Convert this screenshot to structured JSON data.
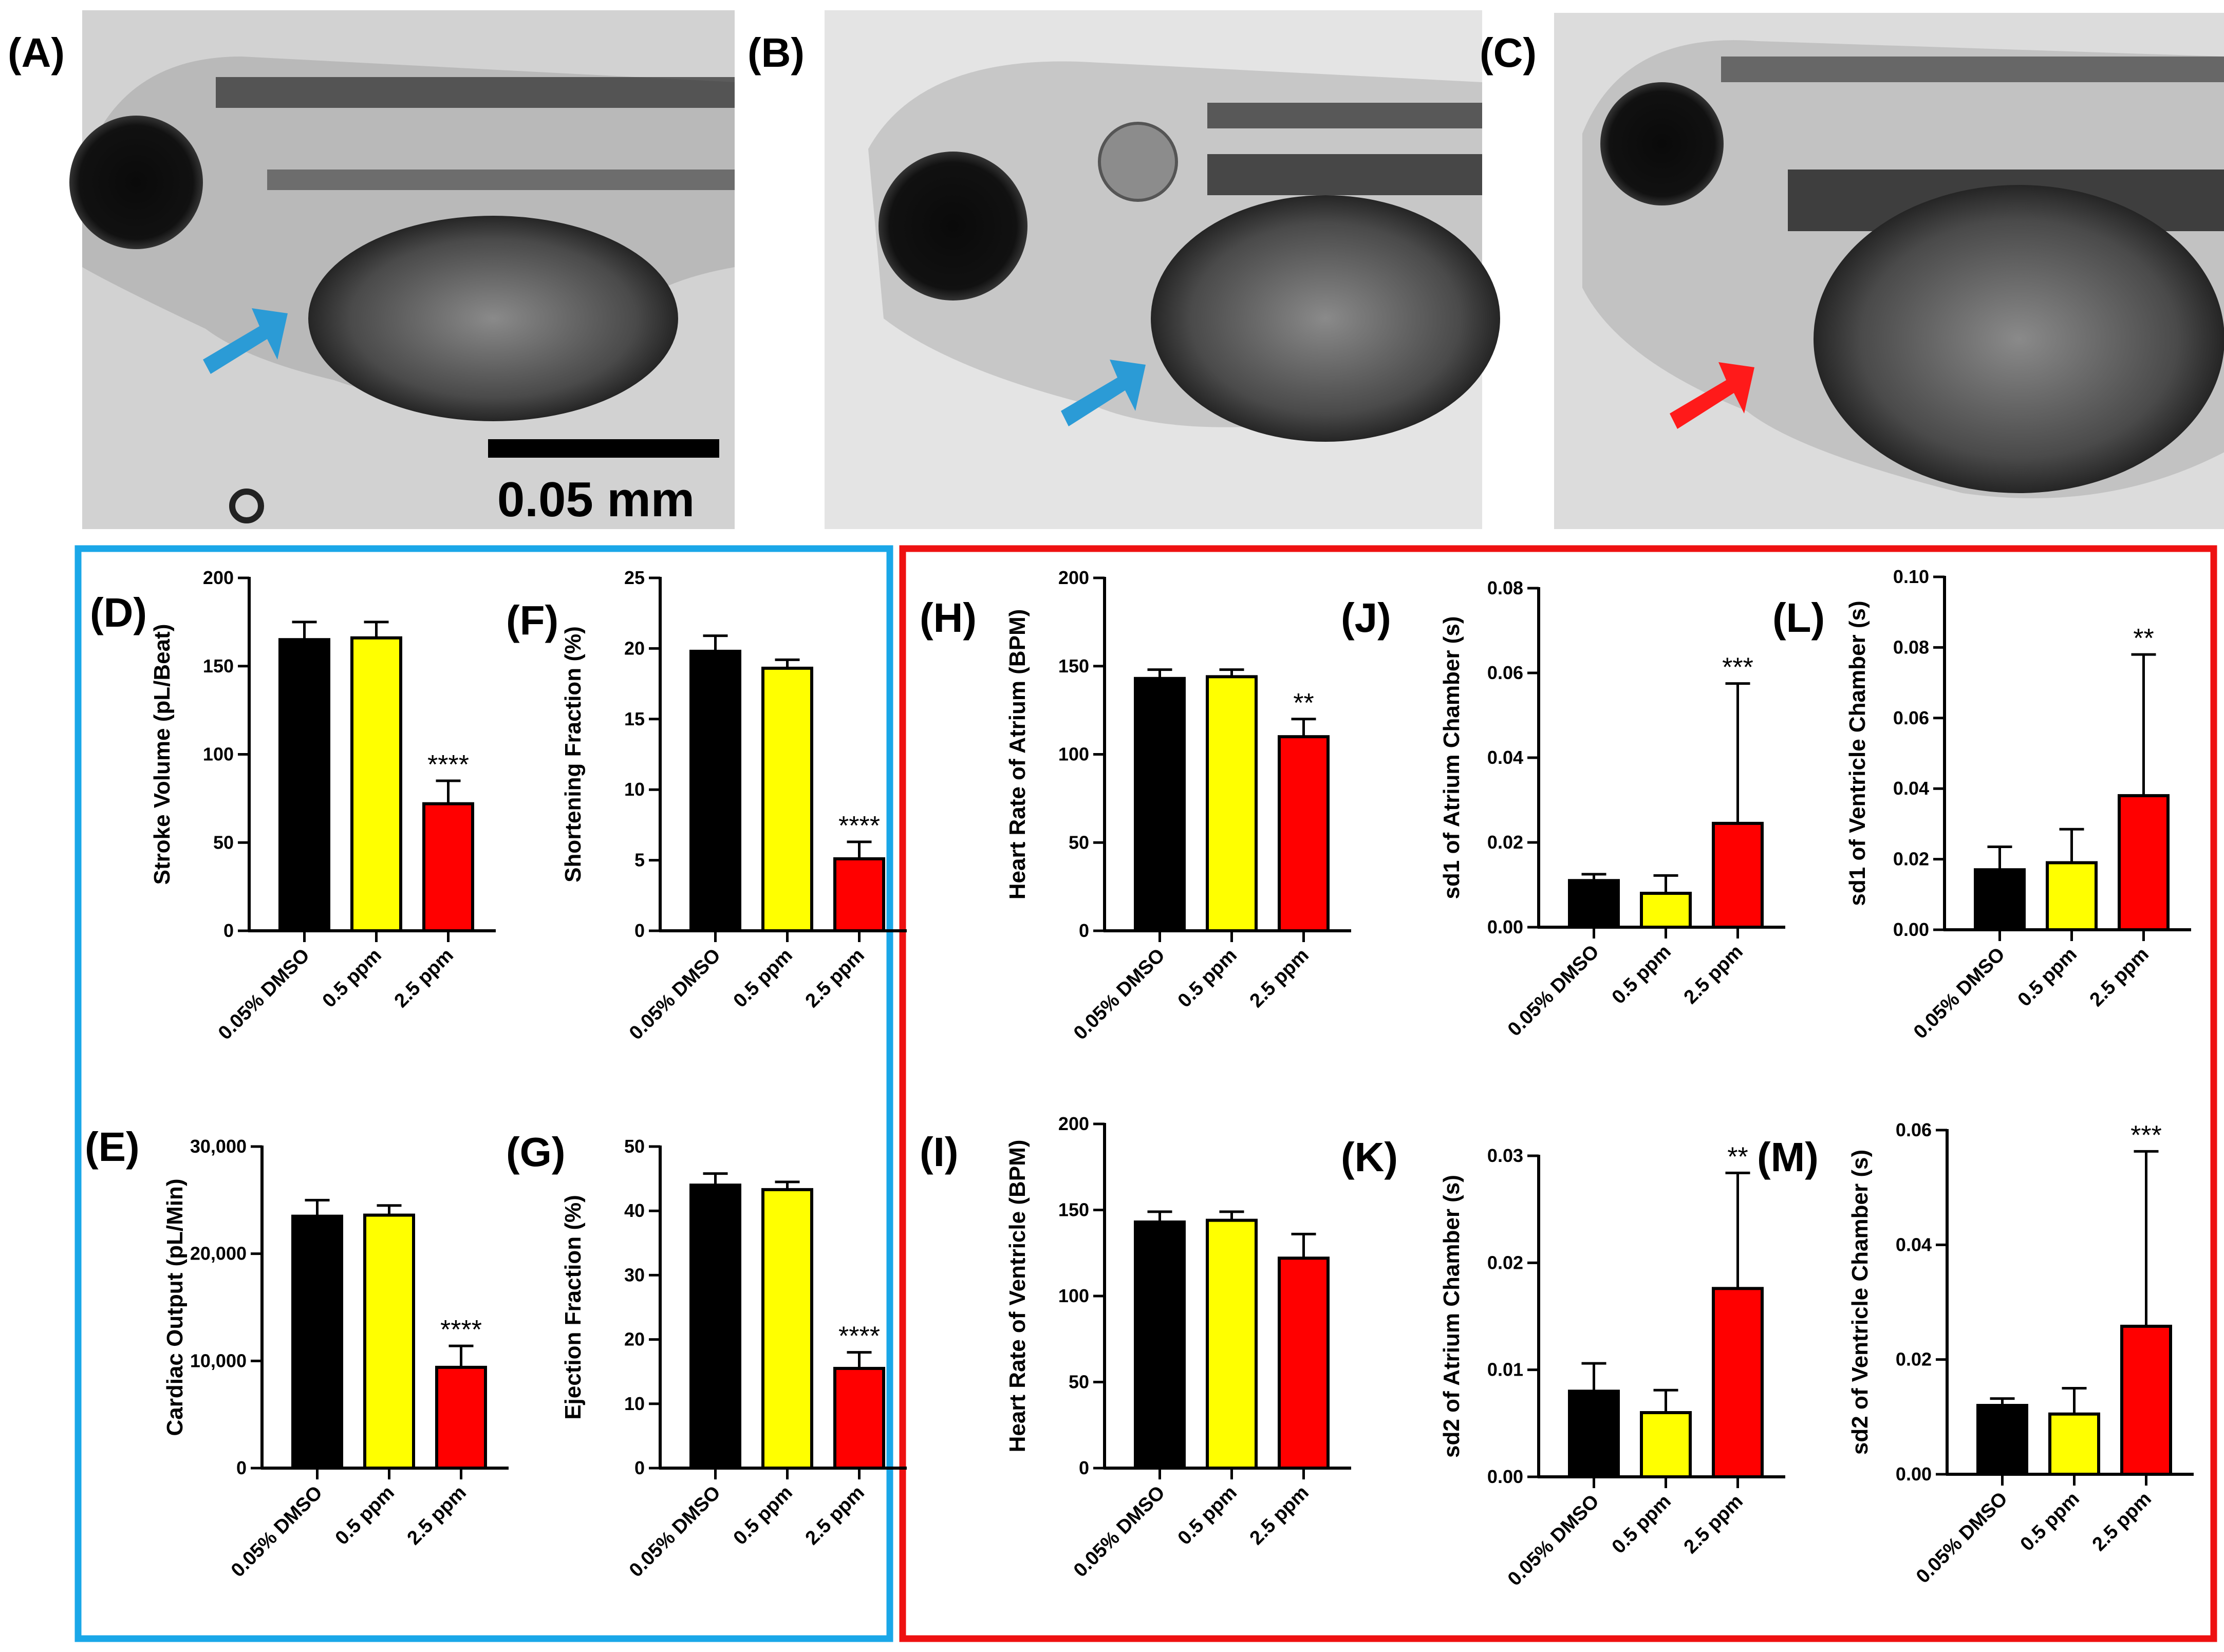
{
  "photos": [
    {
      "panel": "(A)",
      "arrow_color": "#2b9bd6"
    },
    {
      "panel": "(B)",
      "arrow_color": "#2b9bd6"
    },
    {
      "panel": "(C)",
      "arrow_color": "#ff1a1a"
    }
  ],
  "scale_bar": {
    "label": "0.05 mm"
  },
  "colors": {
    "group1": "#000000",
    "group2": "#ffff00",
    "group3": "#ff0000",
    "blue_frame": "#1aa7e8",
    "red_frame": "#ee1111"
  },
  "chart_data": [
    {
      "panel": "(D)",
      "type": "bar",
      "ylabel": "Stroke Volume (pL/Beat)",
      "categories": [
        "0.05% DMSO",
        "0.5 ppm",
        "2.5 ppm"
      ],
      "values": [
        165,
        166,
        72
      ],
      "errors": [
        10,
        9,
        13
      ],
      "ylim": [
        0,
        200
      ],
      "ticks": [
        0,
        50,
        100,
        150,
        200
      ],
      "tick_labels": [
        "0",
        "50",
        "100",
        "150",
        "200"
      ],
      "significance": [
        "",
        "",
        "****"
      ]
    },
    {
      "panel": "(E)",
      "type": "bar",
      "ylabel": "Cardiac Output (pL/Min)",
      "categories": [
        "0.05% DMSO",
        "0.5 ppm",
        "2.5 ppm"
      ],
      "values": [
        23500,
        23600,
        9400
      ],
      "errors": [
        1500,
        900,
        2000
      ],
      "ylim": [
        0,
        30000
      ],
      "ticks": [
        0,
        10000,
        20000,
        30000
      ],
      "tick_labels": [
        "0",
        "10,000",
        "20,000",
        "30,000"
      ],
      "significance": [
        "",
        "",
        "****"
      ]
    },
    {
      "panel": "(F)",
      "type": "bar",
      "ylabel": "Shortening Fraction (%)",
      "categories": [
        "0.05% DMSO",
        "0.5 ppm",
        "2.5 ppm"
      ],
      "values": [
        19.8,
        18.6,
        5.1
      ],
      "errors": [
        1.1,
        0.6,
        1.2
      ],
      "ylim": [
        0,
        25
      ],
      "ticks": [
        0,
        5,
        10,
        15,
        20,
        25
      ],
      "tick_labels": [
        "0",
        "5",
        "10",
        "15",
        "20",
        "25"
      ],
      "significance": [
        "",
        "",
        "****"
      ]
    },
    {
      "panel": "(G)",
      "type": "bar",
      "ylabel": "Ejection Fraction (%)",
      "categories": [
        "0.05% DMSO",
        "0.5 ppm",
        "2.5 ppm"
      ],
      "values": [
        44,
        43.3,
        15.5
      ],
      "errors": [
        1.8,
        1.2,
        2.5
      ],
      "ylim": [
        0,
        50
      ],
      "ticks": [
        0,
        10,
        20,
        30,
        40,
        50
      ],
      "tick_labels": [
        "0",
        "10",
        "20",
        "30",
        "40",
        "50"
      ],
      "significance": [
        "",
        "",
        "****"
      ]
    },
    {
      "panel": "(H)",
      "type": "bar",
      "ylabel": "Heart Rate of Atrium (BPM)",
      "categories": [
        "0.05% DMSO",
        "0.5 ppm",
        "2.5 ppm"
      ],
      "values": [
        143,
        144,
        110
      ],
      "errors": [
        5,
        4,
        10
      ],
      "ylim": [
        0,
        200
      ],
      "ticks": [
        0,
        50,
        100,
        150,
        200
      ],
      "tick_labels": [
        "0",
        "50",
        "100",
        "150",
        "200"
      ],
      "significance": [
        "",
        "",
        "**"
      ]
    },
    {
      "panel": "(I)",
      "type": "bar",
      "ylabel": "Heart Rate of Ventricle (BPM)",
      "categories": [
        "0.05% DMSO",
        "0.5 ppm",
        "2.5 ppm"
      ],
      "values": [
        143,
        144,
        122
      ],
      "errors": [
        6,
        5,
        14
      ],
      "ylim": [
        0,
        200
      ],
      "ticks": [
        0,
        50,
        100,
        150,
        200
      ],
      "tick_labels": [
        "0",
        "50",
        "100",
        "150",
        "200"
      ],
      "significance": [
        "",
        "",
        ""
      ]
    },
    {
      "panel": "(J)",
      "type": "bar",
      "ylabel": "sd1 of Atrium Chamber (s)",
      "categories": [
        "0.05% DMSO",
        "0.5 ppm",
        "2.5 ppm"
      ],
      "values": [
        0.011,
        0.008,
        0.0245
      ],
      "errors": [
        0.0015,
        0.0042,
        0.033
      ],
      "ylim": [
        0,
        0.08
      ],
      "ticks": [
        0,
        0.02,
        0.04,
        0.06,
        0.08
      ],
      "tick_labels": [
        "0.00",
        "0.02",
        "0.04",
        "0.06",
        "0.08"
      ],
      "significance": [
        "",
        "",
        "***"
      ]
    },
    {
      "panel": "(K)",
      "type": "bar",
      "ylabel": "sd2 of Atrium Chamber (s)",
      "categories": [
        "0.05% DMSO",
        "0.5 ppm",
        "2.5 ppm"
      ],
      "values": [
        0.008,
        0.006,
        0.0176
      ],
      "errors": [
        0.0026,
        0.0021,
        0.0108
      ],
      "ylim": [
        0,
        0.03
      ],
      "ticks": [
        0,
        0.01,
        0.02,
        0.03
      ],
      "tick_labels": [
        "0.00",
        "0.01",
        "0.02",
        "0.03"
      ],
      "significance": [
        "",
        "",
        "**"
      ]
    },
    {
      "panel": "(L)",
      "type": "bar",
      "ylabel": "sd1 of Ventricle Chamber (s)",
      "categories": [
        "0.05% DMSO",
        "0.5 ppm",
        "2.5 ppm"
      ],
      "values": [
        0.017,
        0.019,
        0.038
      ],
      "errors": [
        0.0065,
        0.0095,
        0.04
      ],
      "ylim": [
        0,
        0.1
      ],
      "ticks": [
        0,
        0.02,
        0.04,
        0.06,
        0.08,
        0.1
      ],
      "tick_labels": [
        "0.00",
        "0.02",
        "0.04",
        "0.06",
        "0.08",
        "0.10"
      ],
      "significance": [
        "",
        "",
        "**"
      ]
    },
    {
      "panel": "(M)",
      "type": "bar",
      "ylabel": "sd2 of  Ventricle Chamber (s)",
      "categories": [
        "0.05% DMSO",
        "0.5 ppm",
        "2.5 ppm"
      ],
      "values": [
        0.012,
        0.0105,
        0.0258
      ],
      "errors": [
        0.0012,
        0.0045,
        0.0305
      ],
      "ylim": [
        0,
        0.06
      ],
      "ticks": [
        0,
        0.02,
        0.04,
        0.06
      ],
      "tick_labels": [
        "0.00",
        "0.02",
        "0.04",
        "0.06"
      ],
      "significance": [
        "",
        "",
        "***"
      ]
    }
  ]
}
